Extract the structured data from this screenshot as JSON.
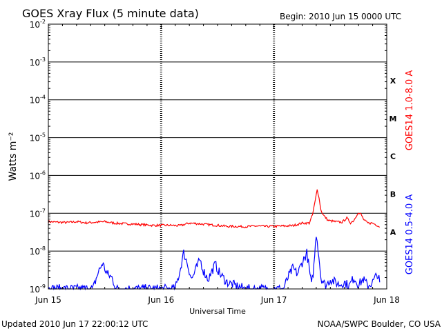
{
  "header": {
    "title": "GOES Xray Flux (5 minute data)",
    "begin": "Begin:  2010 Jun 15 0000 UTC"
  },
  "footer": {
    "updated": "Updated 2010 Jun 17 22:00:12 UTC",
    "credit": "NOAA/SWPC Boulder, CO USA"
  },
  "chart_data": {
    "type": "line",
    "title": "GOES Xray Flux (5 minute data)",
    "xlabel": "Universal Time",
    "ylabel": "Watts m⁻²",
    "y_scale": "log",
    "ylim": [
      1e-09,
      0.01
    ],
    "y_ticks": [
      {
        "value": 0.01,
        "mant": "10",
        "exp": "-2"
      },
      {
        "value": 0.001,
        "mant": "10",
        "exp": "-3"
      },
      {
        "value": 0.0001,
        "mant": "10",
        "exp": "-4"
      },
      {
        "value": 1e-05,
        "mant": "10",
        "exp": "-5"
      },
      {
        "value": 1e-06,
        "mant": "10",
        "exp": "-6"
      },
      {
        "value": 1e-07,
        "mant": "10",
        "exp": "-7"
      },
      {
        "value": 1e-08,
        "mant": "10",
        "exp": "-8"
      },
      {
        "value": 1e-09,
        "mant": "10",
        "exp": "-9"
      }
    ],
    "xlim": [
      0,
      72
    ],
    "x_unit": "hours since 2010 Jun 15 0000 UTC",
    "x_ticks": [
      {
        "value": 0,
        "label": "Jun 15"
      },
      {
        "value": 24,
        "label": "Jun 16"
      },
      {
        "value": 48,
        "label": "Jun 17"
      },
      {
        "value": 72,
        "label": "Jun 18"
      }
    ],
    "flare_classes": [
      {
        "label": "X",
        "value": 0.00032
      },
      {
        "label": "M",
        "value": 3.2e-05
      },
      {
        "label": "C",
        "value": 3.2e-06
      },
      {
        "label": "B",
        "value": 3.2e-07
      },
      {
        "label": "A",
        "value": 3.2e-08
      }
    ],
    "grid": true,
    "series": [
      {
        "name": "GOES14 1.0-8.0 A",
        "color": "#ff0000",
        "points": [
          [
            0,
            6e-08
          ],
          [
            2,
            5.8e-08
          ],
          [
            4,
            5.7e-08
          ],
          [
            6,
            6e-08
          ],
          [
            8,
            5.6e-08
          ],
          [
            10,
            5.8e-08
          ],
          [
            12,
            6e-08
          ],
          [
            14,
            5.5e-08
          ],
          [
            16,
            5.3e-08
          ],
          [
            18,
            5.2e-08
          ],
          [
            20,
            5e-08
          ],
          [
            22,
            4.8e-08
          ],
          [
            24,
            4.8e-08
          ],
          [
            26,
            4.8e-08
          ],
          [
            28,
            4.7e-08
          ],
          [
            30,
            5.5e-08
          ],
          [
            32,
            5.3e-08
          ],
          [
            34,
            5e-08
          ],
          [
            36,
            4.8e-08
          ],
          [
            38,
            4.5e-08
          ],
          [
            40,
            4.5e-08
          ],
          [
            42,
            4.4e-08
          ],
          [
            44,
            4.6e-08
          ],
          [
            46,
            4.5e-08
          ],
          [
            48,
            4.5e-08
          ],
          [
            50,
            4.6e-08
          ],
          [
            52,
            4.7e-08
          ],
          [
            54,
            5.5e-08
          ],
          [
            55.5,
            5.5e-08
          ],
          [
            56.2,
            9e-08
          ],
          [
            56.8,
            2.2e-07
          ],
          [
            57.2,
            4.5e-07
          ],
          [
            57.6,
            2.5e-07
          ],
          [
            58,
            1.2e-07
          ],
          [
            58.5,
            9e-08
          ],
          [
            59.5,
            6.5e-08
          ],
          [
            61,
            6e-08
          ],
          [
            62.5,
            5.8e-08
          ],
          [
            63.5,
            7.5e-08
          ],
          [
            64.3,
            5.6e-08
          ],
          [
            65,
            6.5e-08
          ],
          [
            65.8,
            1e-07
          ],
          [
            66.5,
            9.5e-08
          ],
          [
            67.2,
            6.5e-08
          ],
          [
            68,
            5.5e-08
          ],
          [
            69,
            5.5e-08
          ],
          [
            70,
            4.8e-08
          ],
          [
            70.5,
            4.3e-08
          ]
        ]
      },
      {
        "name": "GOES14 0.5-4.0 A",
        "color": "#0000ff",
        "points": [
          [
            0,
            1e-09
          ],
          [
            2,
            1e-09
          ],
          [
            4,
            1e-09
          ],
          [
            6,
            1e-09
          ],
          [
            8,
            1e-09
          ],
          [
            9.5,
            1e-09
          ],
          [
            10.5,
            2.5e-09
          ],
          [
            11.5,
            4.8e-09
          ],
          [
            12.5,
            2.5e-09
          ],
          [
            13.5,
            2e-09
          ],
          [
            14.5,
            1e-09
          ],
          [
            16,
            1e-09
          ],
          [
            18,
            1e-09
          ],
          [
            20,
            1e-09
          ],
          [
            22,
            1e-09
          ],
          [
            24,
            1e-09
          ],
          [
            26,
            1e-09
          ],
          [
            27,
            1e-09
          ],
          [
            28,
            3e-09
          ],
          [
            28.8,
            9e-09
          ],
          [
            29.5,
            5e-09
          ],
          [
            30.5,
            1.8e-09
          ],
          [
            31.5,
            3.5e-09
          ],
          [
            32.3,
            6e-09
          ],
          [
            33,
            3e-09
          ],
          [
            34,
            1.8e-09
          ],
          [
            35.5,
            4.5e-09
          ],
          [
            36.5,
            2.5e-09
          ],
          [
            38,
            1.5e-09
          ],
          [
            40,
            1.2e-09
          ],
          [
            42,
            1e-09
          ],
          [
            44,
            1e-09
          ],
          [
            46,
            1e-09
          ],
          [
            48,
            1e-09
          ],
          [
            50,
            1e-09
          ],
          [
            51,
            2e-09
          ],
          [
            52,
            3.5e-09
          ],
          [
            53,
            2.5e-09
          ],
          [
            54,
            5e-09
          ],
          [
            55,
            9e-09
          ],
          [
            55.5,
            3.5e-09
          ],
          [
            56,
            1.2e-09
          ],
          [
            56.5,
            4e-09
          ],
          [
            57,
            3e-08
          ],
          [
            57.4,
            1.2e-08
          ],
          [
            58,
            2e-09
          ],
          [
            59,
            1.2e-09
          ],
          [
            60,
            1.8e-09
          ],
          [
            61,
            1.5e-09
          ],
          [
            62,
            1.3e-09
          ],
          [
            63,
            1.5e-09
          ],
          [
            64,
            1.2e-09
          ],
          [
            65,
            2e-09
          ],
          [
            66,
            1.3e-09
          ],
          [
            67,
            1.8e-09
          ],
          [
            68,
            1.2e-09
          ],
          [
            69,
            1.5e-09
          ],
          [
            70,
            2.5e-09
          ],
          [
            70.5,
            1.5e-09
          ]
        ]
      }
    ]
  }
}
